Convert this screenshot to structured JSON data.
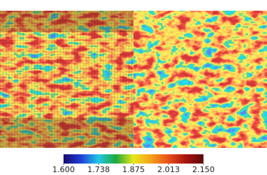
{
  "chart_data": {
    "type": "heatmap",
    "colormap": [
      "#1a0a6e",
      "#1f3fd8",
      "#22c8e6",
      "#1fa83a",
      "#e8e81a",
      "#f5a01a",
      "#e8501a",
      "#a8140f",
      "#5a0a0a"
    ],
    "zlim": [
      1.6,
      2.15
    ],
    "zticks": [
      {
        "value": 1.6,
        "label": "1.600"
      },
      {
        "value": 1.738,
        "label": "1.738"
      },
      {
        "value": 1.875,
        "label": "1.875"
      },
      {
        "value": 2.013,
        "label": "2.013"
      },
      {
        "value": 2.15,
        "label": "2.150"
      }
    ]
  }
}
